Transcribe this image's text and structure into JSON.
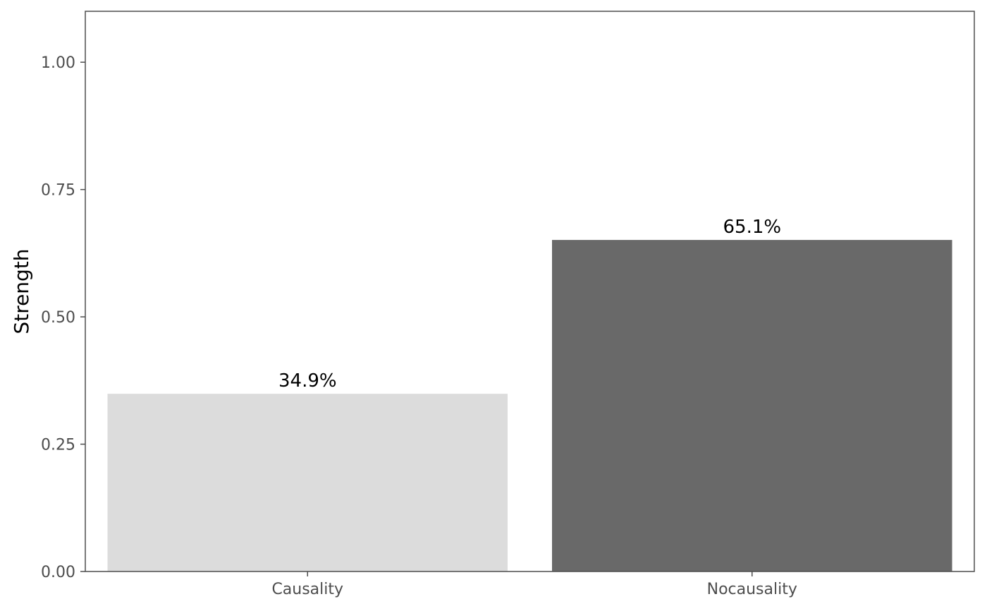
{
  "chart_data": {
    "type": "bar",
    "categories": [
      "Causality",
      "Nocausality"
    ],
    "values": [
      0.349,
      0.651
    ],
    "data_labels": [
      "34.9%",
      "65.1%"
    ],
    "bar_colors": [
      "#dcdcdc",
      "#696969"
    ],
    "ylabel": "Strength",
    "xlabel": "",
    "ylim": [
      0,
      1.1
    ],
    "yticks": [
      0.0,
      0.25,
      0.5,
      0.75,
      1.0
    ],
    "ytick_labels": [
      "0.00",
      "0.25",
      "0.50",
      "0.75",
      "1.00"
    ],
    "grid": false,
    "legend": "none",
    "colors": {
      "background": "#ffffff",
      "panel_border": "#4d4d4d",
      "tick_text": "#4d4d4d",
      "axis_title": "#000000"
    }
  }
}
